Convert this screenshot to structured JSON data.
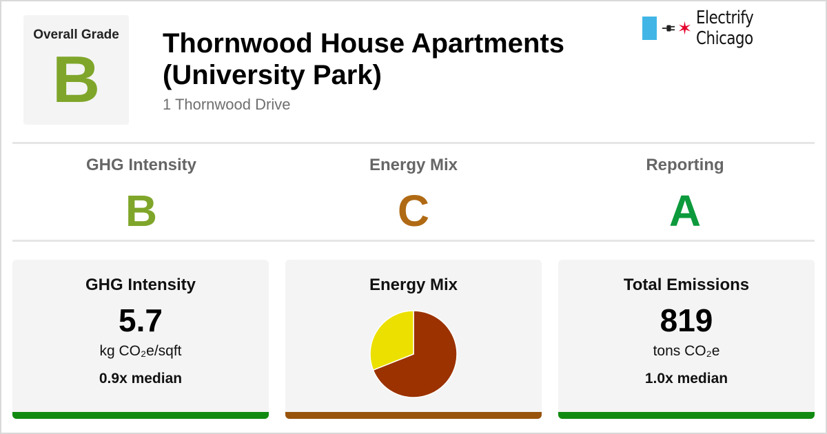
{
  "header": {
    "overall_label": "Overall Grade",
    "overall_grade": "B",
    "title": "Thornwood House Apartments (University Park)",
    "address": "1 Thornwood Drive",
    "logo_text": "Electrify Chicago",
    "logo_icons": [
      "blue-bar",
      "plug-icon",
      "red-star-icon"
    ]
  },
  "summary": [
    {
      "label": "GHG Intensity",
      "grade": "B",
      "color": "#7fa62a"
    },
    {
      "label": "Energy Mix",
      "grade": "C",
      "color": "#b06a14"
    },
    {
      "label": "Reporting",
      "grade": "A",
      "color": "#0c9a3c"
    }
  ],
  "colors": {
    "grade_b": "#7fa62a",
    "grade_c": "#b06a14",
    "grade_a": "#0c9a3c",
    "accent_green": "#118a11",
    "accent_brown": "#98540b",
    "pie_gas": "#9b3200",
    "pie_electric": "#ece000",
    "logo_blue": "#41b6e6",
    "logo_red": "#e4002b"
  },
  "cards": {
    "ghg": {
      "title": "GHG Intensity",
      "value": "5.7",
      "unit": "kg CO₂e/sqft",
      "median": "0.9x median"
    },
    "mix": {
      "title": "Energy Mix"
    },
    "total": {
      "title": "Total Emissions",
      "value": "819",
      "unit": "tons CO₂e",
      "median": "1.0x median"
    }
  },
  "chart_data": {
    "type": "pie",
    "slices": [
      {
        "value": 69,
        "color": "#9b3200"
      },
      {
        "value": 31,
        "color": "#ece000"
      }
    ]
  }
}
